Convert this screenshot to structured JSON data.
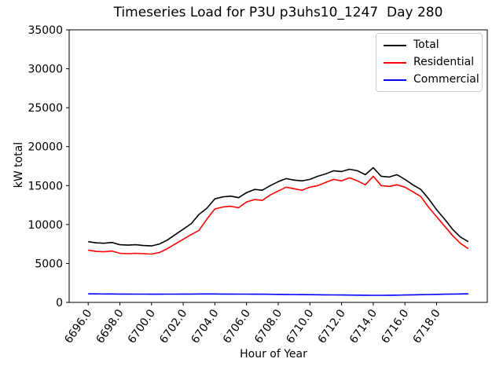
{
  "chart_data": {
    "type": "line",
    "title": "Timeseries Load for P3U p3uhs10_1247  Day 280",
    "xlabel": "Hour of Year",
    "ylabel": "kW total",
    "xlim": [
      6694.8,
      6721.2
    ],
    "ylim": [
      0,
      35000
    ],
    "grid": false,
    "legend_position": "upper right",
    "xticks": [
      6696,
      6698,
      6700,
      6702,
      6704,
      6706,
      6708,
      6710,
      6712,
      6714,
      6716,
      6718
    ],
    "xtick_labels": [
      "6696.0",
      "6698.0",
      "6700.0",
      "6702.0",
      "6704.0",
      "6706.0",
      "6708.0",
      "6710.0",
      "6712.0",
      "6714.0",
      "6716.0",
      "6718.0"
    ],
    "yticks": [
      0,
      5000,
      10000,
      15000,
      20000,
      25000,
      30000,
      35000
    ],
    "x": [
      6696,
      6696.5,
      6697,
      6697.5,
      6698,
      6698.5,
      6699,
      6699.5,
      6700,
      6700.5,
      6701,
      6701.5,
      6702,
      6702.5,
      6703,
      6703.5,
      6704,
      6704.5,
      6705,
      6705.5,
      6706,
      6706.5,
      6707,
      6707.5,
      6708,
      6708.5,
      6709,
      6709.5,
      6710,
      6710.5,
      6711,
      6711.5,
      6712,
      6712.5,
      6713,
      6713.5,
      6714,
      6714.5,
      6715,
      6715.5,
      6716,
      6716.5,
      6717,
      6717.5,
      6718,
      6718.5,
      6719,
      6719.5,
      6720
    ],
    "series": [
      {
        "name": "Total",
        "color": "#000000",
        "values": [
          7800,
          7650,
          7600,
          7700,
          7400,
          7350,
          7400,
          7300,
          7250,
          7500,
          8000,
          8700,
          9400,
          10100,
          11300,
          12100,
          13300,
          13550,
          13650,
          13450,
          14100,
          14500,
          14400,
          15000,
          15500,
          15900,
          15700,
          15600,
          15800,
          16200,
          16500,
          16900,
          16800,
          17100,
          16900,
          16400,
          17300,
          16200,
          16100,
          16400,
          15800,
          15100,
          14500,
          13300,
          11900,
          10700,
          9400,
          8400,
          7800
        ]
      },
      {
        "name": "Residential",
        "color": "#ff0000",
        "values": [
          6700,
          6550,
          6500,
          6600,
          6300,
          6250,
          6300,
          6250,
          6200,
          6400,
          6900,
          7500,
          8100,
          8700,
          9250,
          10700,
          12000,
          12250,
          12350,
          12150,
          12900,
          13200,
          13100,
          13800,
          14300,
          14800,
          14600,
          14400,
          14800,
          15000,
          15400,
          15800,
          15600,
          16000,
          15600,
          15100,
          16200,
          15000,
          14900,
          15100,
          14800,
          14200,
          13600,
          12200,
          11000,
          9800,
          8600,
          7600,
          6900
        ]
      },
      {
        "name": "Commercial",
        "color": "#0000ff",
        "values": [
          1100,
          1090,
          1080,
          1080,
          1070,
          1070,
          1060,
          1060,
          1050,
          1050,
          1060,
          1060,
          1070,
          1070,
          1080,
          1080,
          1080,
          1070,
          1070,
          1060,
          1060,
          1050,
          1050,
          1040,
          1030,
          1020,
          1010,
          1000,
          990,
          980,
          970,
          960,
          950,
          940,
          930,
          920,
          910,
          910,
          920,
          930,
          950,
          970,
          990,
          1010,
          1030,
          1050,
          1070,
          1080,
          1100
        ]
      }
    ]
  }
}
